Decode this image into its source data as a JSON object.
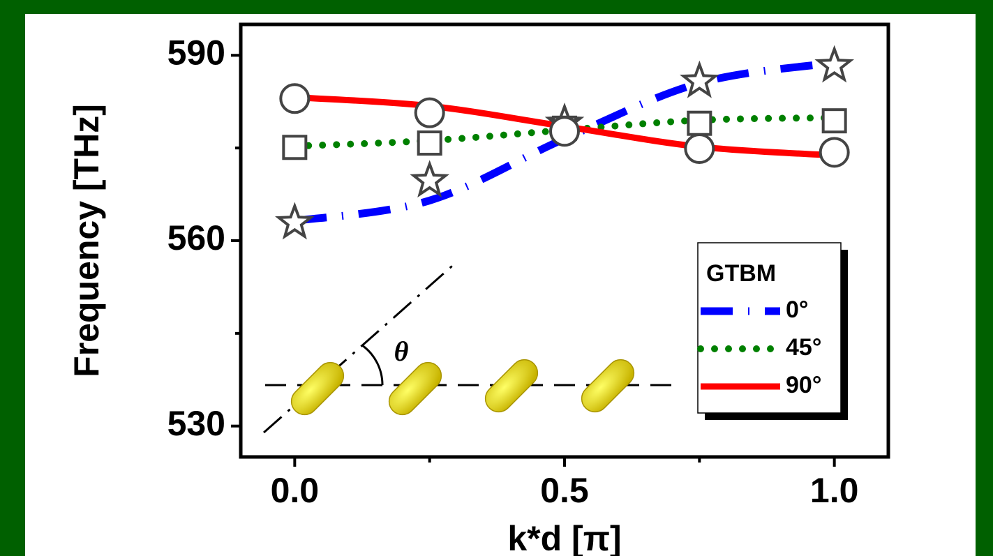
{
  "chart_data": {
    "type": "line",
    "xlabel": "k*d [π]",
    "ylabel": "Frequency [THz]",
    "x": [
      0,
      0.25,
      0.5,
      0.75,
      1.0
    ],
    "xlim": [
      -0.1,
      1.1
    ],
    "xticks": [
      {
        "value": 0,
        "label": "0.0"
      },
      0.5,
      {
        "value": 1,
        "label": "1.0"
      }
    ],
    "xminor": [
      0.25,
      0.75
    ],
    "ylim": [
      525,
      595
    ],
    "yticks": [
      530,
      560,
      590
    ],
    "yminor": [
      545,
      575
    ],
    "legend_title": "GTBM",
    "legend": "lower right",
    "annotation": "θ",
    "series": [
      {
        "name": "0°",
        "color": "#0000ff",
        "style": "dashdot",
        "values": [
          563.2,
          566.5,
          576.5,
          585.5,
          588.8
        ]
      },
      {
        "name": "45°",
        "color": "#008000",
        "style": "dotted",
        "values": [
          575.3,
          576.2,
          577.9,
          579.5,
          579.9
        ]
      },
      {
        "name": "90°",
        "color": "#ff0000",
        "style": "solid",
        "values": [
          583.2,
          581.8,
          578.5,
          575.2,
          573.8
        ]
      },
      {
        "marker": "star",
        "color": "#444444",
        "values": [
          562.9,
          569.7,
          579.0,
          585.8,
          588.3
        ]
      },
      {
        "marker": "square",
        "color": "#444444",
        "values": [
          575.1,
          575.8,
          578.2,
          579.0,
          579.4
        ]
      },
      {
        "marker": "circle",
        "color": "#444444",
        "values": [
          583.0,
          580.7,
          577.7,
          574.9,
          574.3
        ]
      }
    ]
  }
}
